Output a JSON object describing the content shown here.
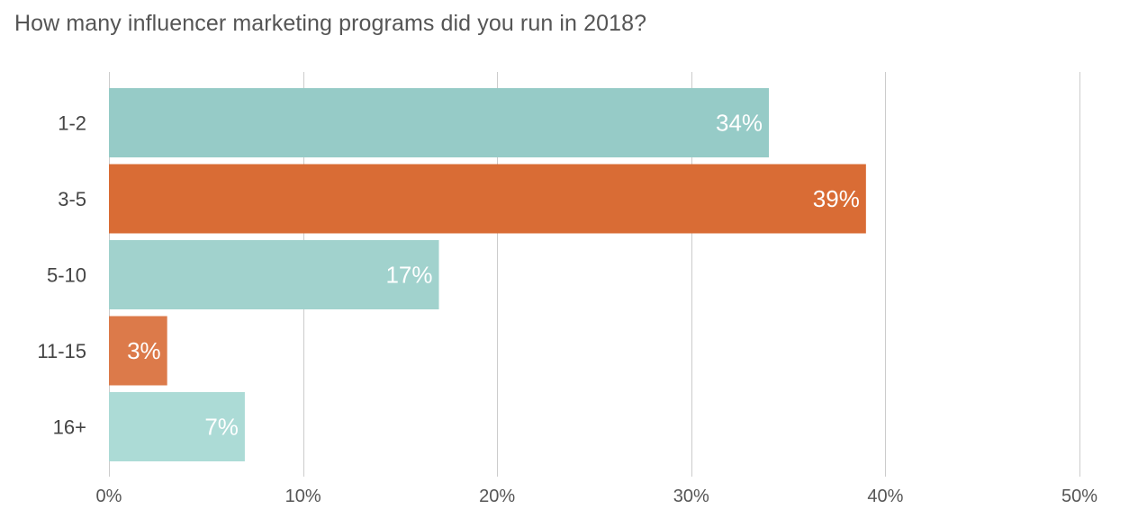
{
  "chart_data": {
    "type": "bar",
    "orientation": "horizontal",
    "title": "How many influencer marketing programs did you run in 2018?",
    "categories": [
      "1-2",
      "3-5",
      "5-10",
      "11-15",
      "16+"
    ],
    "values": [
      34,
      39,
      17,
      3,
      7
    ],
    "value_labels": [
      "34%",
      "39%",
      "17%",
      "3%",
      "7%"
    ],
    "bar_colors": [
      "#96cbc7",
      "#d96c35",
      "#a1d2cd",
      "#dc7a4a",
      "#acdbd6"
    ],
    "xlim": [
      0,
      50
    ],
    "x_ticks": [
      0,
      10,
      20,
      30,
      40,
      50
    ],
    "x_tick_labels": [
      "0%",
      "10%",
      "20%",
      "30%",
      "40%",
      "50%"
    ],
    "xlabel": "",
    "ylabel": "",
    "grid": true,
    "legend": "none"
  },
  "colors": {
    "title": "#555555",
    "category_label": "#444444",
    "tick_label": "#555555",
    "gridline": "#cccccc",
    "value_label": "#ffffff"
  }
}
